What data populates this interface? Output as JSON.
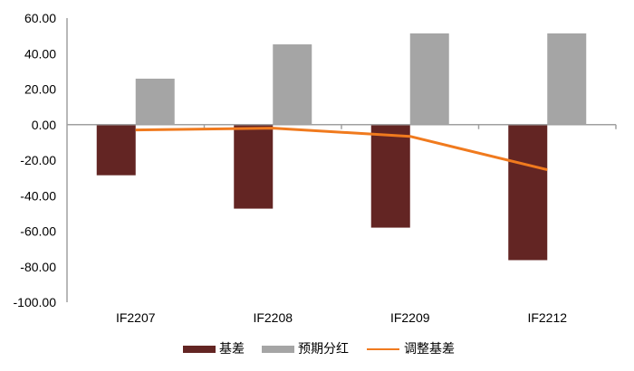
{
  "chart_data": {
    "type": "bar",
    "title": "",
    "xlabel": "",
    "ylabel": "",
    "categories": [
      "IF2207",
      "IF2208",
      "IF2209",
      "IF2212"
    ],
    "series": [
      {
        "name": "基差",
        "type": "bar",
        "color": "#632523",
        "values": [
          -28.5,
          -47.3,
          -58.0,
          -76.3
        ]
      },
      {
        "name": "预期分红",
        "type": "bar",
        "color": "#A5A5A5",
        "values": [
          25.9,
          45.2,
          51.4,
          51.4
        ]
      },
      {
        "name": "调整基差",
        "type": "line",
        "color": "#F07A1E",
        "values": [
          -3.0,
          -2.0,
          -6.6,
          -25.4
        ]
      }
    ],
    "ylim": [
      -100,
      60
    ],
    "yticks": [
      60,
      40,
      20,
      0,
      -20,
      -40,
      -60,
      -80,
      -100
    ],
    "ytick_labels": [
      "60.00",
      "40.00",
      "20.00",
      "0.00",
      "-20.00",
      "-40.00",
      "-60.00",
      "-80.00",
      "-100.00"
    ],
    "grid": false,
    "legend_position": "bottom"
  },
  "legend": {
    "items": [
      {
        "label": "基差",
        "color": "#632523",
        "kind": "box"
      },
      {
        "label": "预期分红",
        "color": "#A5A5A5",
        "kind": "box"
      },
      {
        "label": "调整基差",
        "color": "#F07A1E",
        "kind": "line"
      }
    ]
  },
  "colors": {
    "axis": "#A0A0A0"
  }
}
